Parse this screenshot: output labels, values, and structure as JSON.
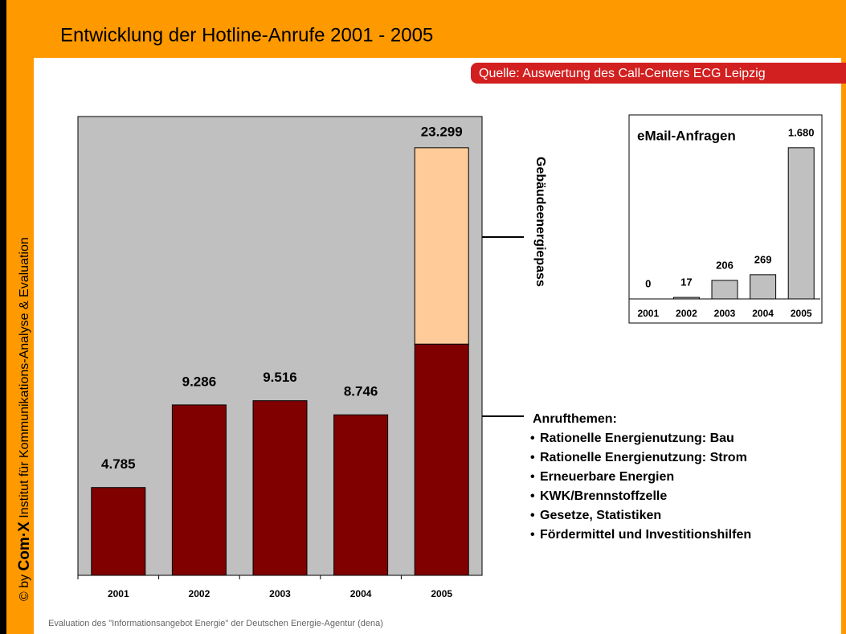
{
  "header": {
    "title": "Entwicklung der Hotline-Anrufe 2001 - 2005",
    "source": "Quelle: Auswertung des Call-Centers ECG Leipzig"
  },
  "sidebar": {
    "copyright": "© by",
    "logo": "Com·X",
    "institute": "Institut für Kommunikations-Analyse & Evaluation"
  },
  "footer": "Evaluation des \"Informationsangebot Energie\" der Deutschen Energie-Agentur (dena)",
  "chart_data": [
    {
      "type": "bar",
      "stacked": true,
      "categories": [
        "2001",
        "2002",
        "2003",
        "2004",
        "2005"
      ],
      "series": [
        {
          "name": "Anrufthemen:",
          "color": "#800000",
          "values": [
            4785,
            9286,
            9516,
            8746,
            12600
          ],
          "value_labels": [
            "4.785",
            "9.286",
            "9.516",
            "8.746",
            null
          ]
        },
        {
          "name": "Gebäudeenergiepass",
          "color": "#ffcc99",
          "values": [
            null,
            null,
            null,
            null,
            10699
          ]
        }
      ],
      "total": 23299,
      "total_label": "23.299",
      "topics": [
        "Rationelle Energienutzung: Bau",
        "Rationelle Energienutzung: Strom",
        "Erneuerbare Energien",
        "KWK/Brennstoffzelle",
        "Gesetze, Statistiken",
        "Fördermittel und Investitionshilfen"
      ],
      "ylim": [
        0,
        25000
      ],
      "background": "#c0c0c0"
    },
    {
      "type": "bar",
      "title": "eMail-Anfragen",
      "categories": [
        "2001",
        "2002",
        "2003",
        "2004",
        "2005"
      ],
      "values": [
        0,
        17,
        206,
        269,
        1680
      ],
      "value_labels": [
        "0",
        "17",
        "206",
        "269",
        "1.680"
      ],
      "color": "#c0c0c0",
      "ylim": [
        0,
        2000
      ]
    }
  ]
}
